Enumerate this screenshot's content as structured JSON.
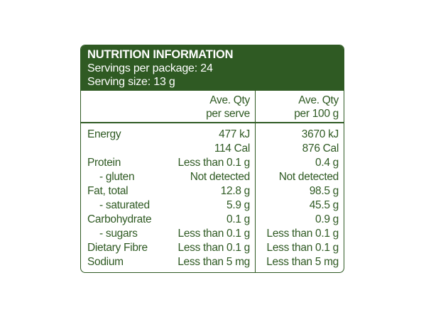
{
  "header": {
    "title": "NUTRITION INFORMATION",
    "servings": "Servings per package: 24",
    "serving_size": "Serving size: 13 g"
  },
  "columns": {
    "per_serve": [
      "Ave. Qty",
      "per serve"
    ],
    "per_100g": [
      "Ave. Qty",
      "per 100 g"
    ]
  },
  "rows": [
    {
      "label": "Energy",
      "per_serve": "477 kJ",
      "per_100g": "3670 kJ"
    },
    {
      "label": "",
      "per_serve": "114 Cal",
      "per_100g": "876 Cal"
    },
    {
      "label": "Protein",
      "per_serve": "Less than 0.1 g",
      "per_100g": "0.4 g"
    },
    {
      "label": "- gluten",
      "per_serve": "Not detected",
      "per_100g": "Not detected"
    },
    {
      "label": "Fat, total",
      "per_serve": "12.8 g",
      "per_100g": "98.5 g"
    },
    {
      "label": "- saturated",
      "per_serve": "5.9 g",
      "per_100g": "45.5 g"
    },
    {
      "label": "Carbohydrate",
      "per_serve": "0.1 g",
      "per_100g": "0.9 g"
    },
    {
      "label": "- sugars",
      "per_serve": "Less than 0.1 g",
      "per_100g": "Less than 0.1 g"
    },
    {
      "label": "Dietary Fibre",
      "per_serve": "Less than 0.1 g",
      "per_100g": "Less than 0.1 g"
    },
    {
      "label": "Sodium",
      "per_serve": "Less than 5 mg",
      "per_100g": "Less than 5 mg"
    }
  ],
  "colors": {
    "accent": "#2f5a23",
    "background": "#ffffff"
  }
}
